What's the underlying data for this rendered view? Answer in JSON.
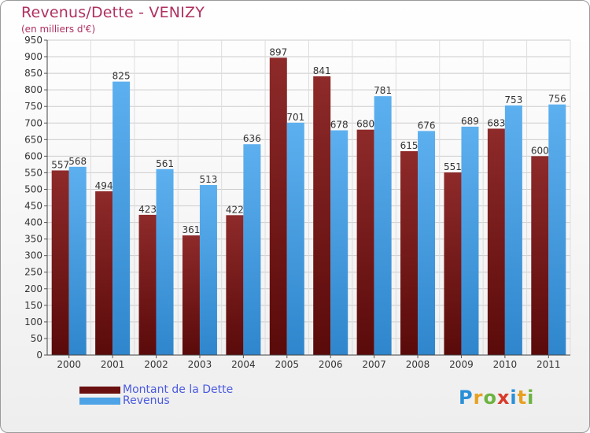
{
  "chart_data": {
    "type": "bar",
    "title": "Revenus/Dette - VENIZY",
    "subtitle": "(en milliers d'€)",
    "categories": [
      "2000",
      "2001",
      "2002",
      "2003",
      "2004",
      "2005",
      "2006",
      "2007",
      "2008",
      "2009",
      "2010",
      "2011"
    ],
    "series": [
      {
        "name": "Montant de la Dette",
        "color": "#7a1c1c",
        "values": [
          557,
          494,
          423,
          361,
          422,
          897,
          841,
          680,
          615,
          551,
          683,
          600
        ]
      },
      {
        "name": "Revenus",
        "color": "#4da3e6",
        "values": [
          568,
          825,
          561,
          513,
          636,
          701,
          678,
          781,
          676,
          689,
          753,
          756
        ]
      }
    ],
    "ylim": [
      0,
      950
    ],
    "ytick_step": 50,
    "grid": true,
    "legend_position": "bottom-left"
  },
  "branding": {
    "logo_letters": [
      "P",
      "r",
      "o",
      "x",
      "i",
      "t",
      "i"
    ]
  }
}
